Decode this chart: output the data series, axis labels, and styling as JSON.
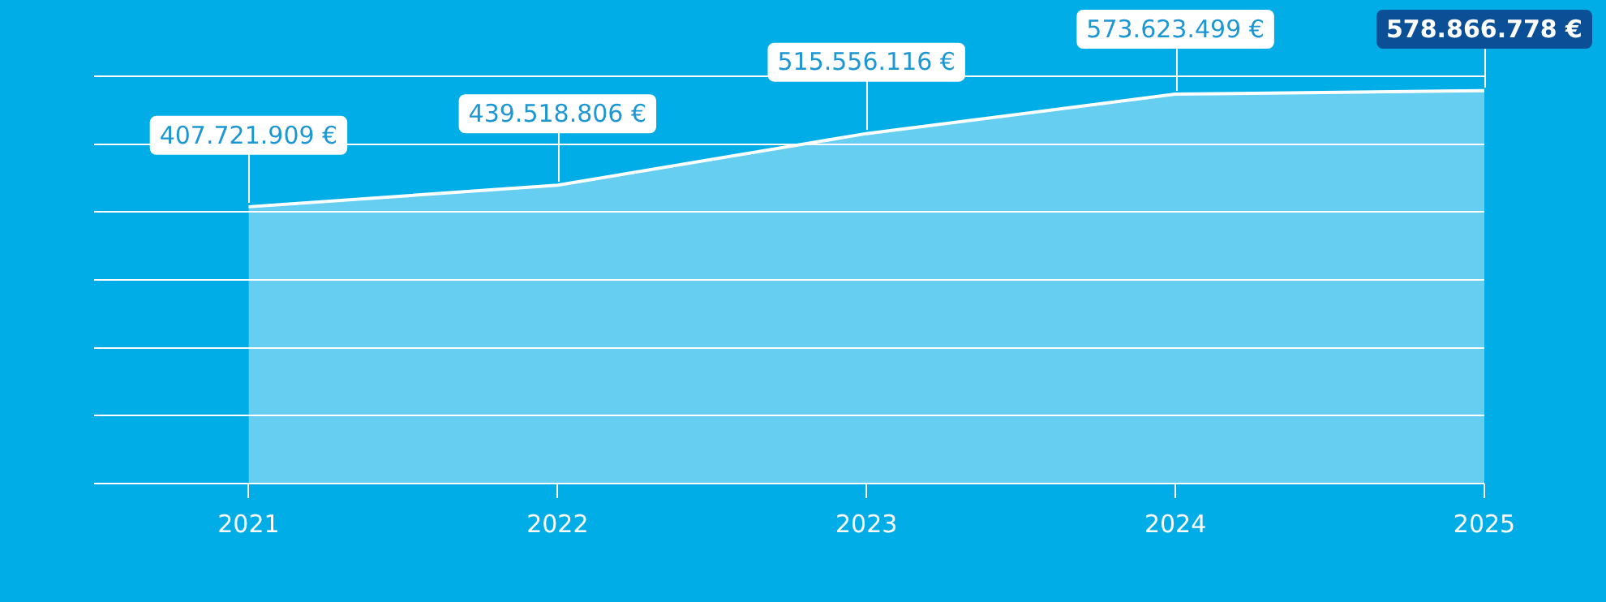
{
  "chart_data": {
    "type": "area",
    "x": [
      2021,
      2022,
      2023,
      2024,
      2025
    ],
    "xlim": [
      2020.5,
      2025
    ],
    "xticks": [
      2021,
      2022,
      2023,
      2024,
      2025
    ],
    "tick_labels": "x",
    "series": [
      {
        "color": "#ffffff",
        "values": [
          407721909,
          439518806,
          515556116,
          573623499,
          578866778
        ],
        "value_labels": [
          "407.721.909 €",
          "439.518.806 €",
          "515.556.116 €",
          "573.623.499 €",
          "578.866.778 €"
        ]
      }
    ],
    "grid": "y",
    "legend": false,
    "marker": "none",
    "line_style": "solid"
  }
}
